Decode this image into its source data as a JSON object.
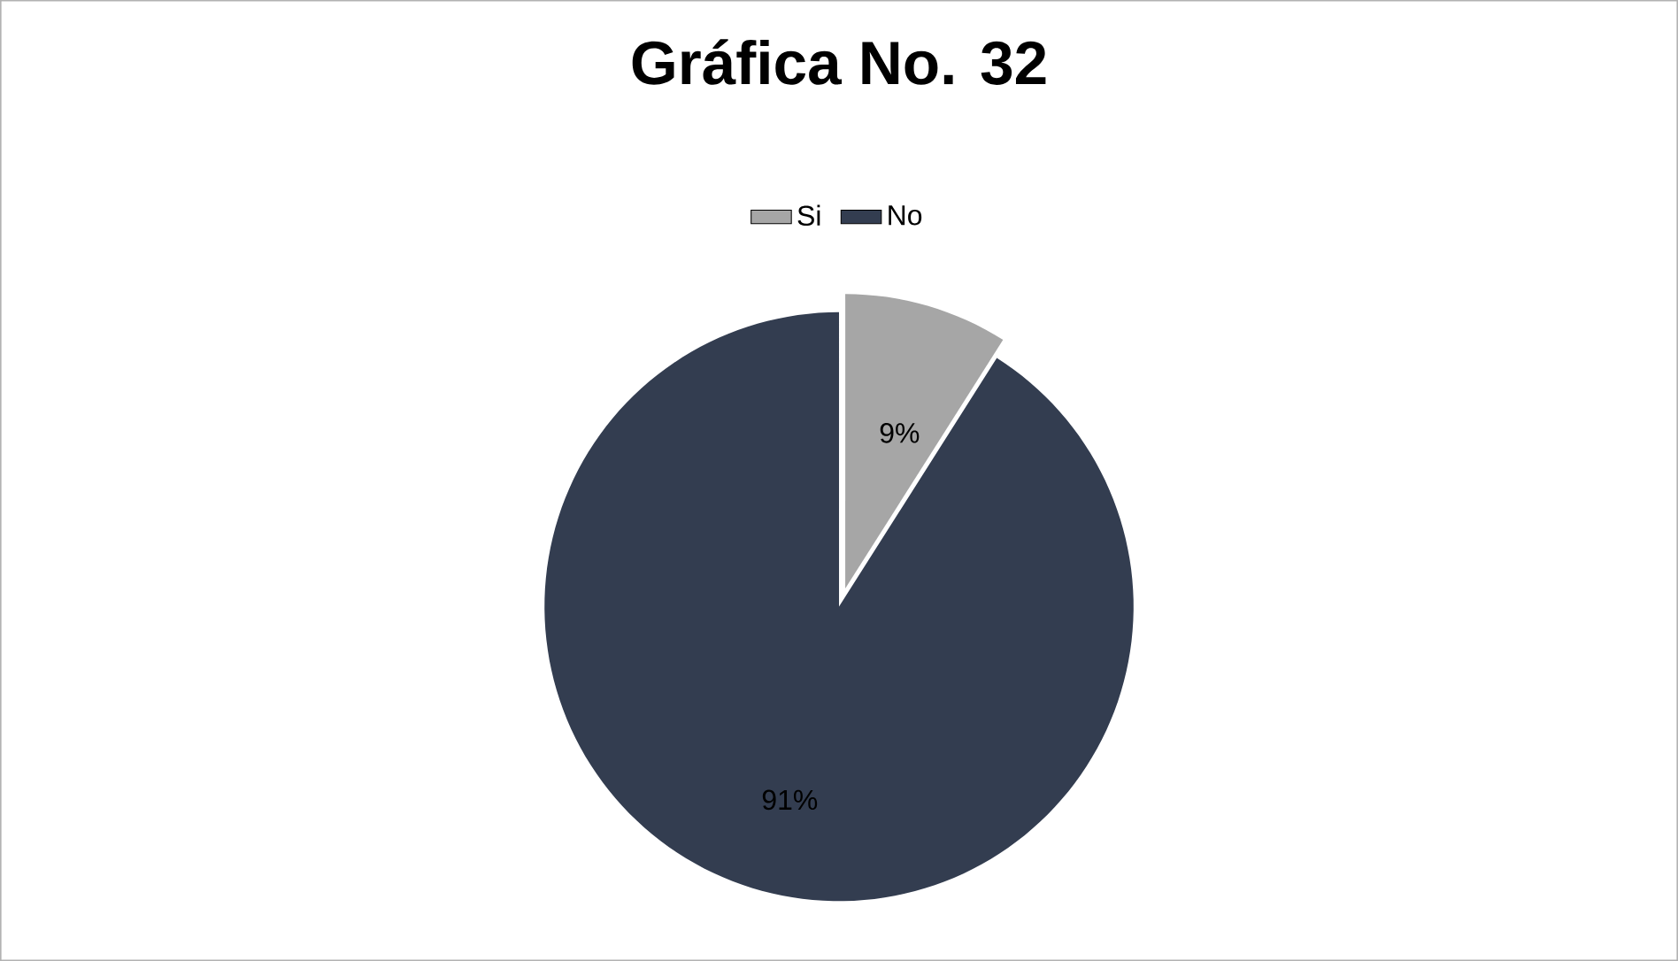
{
  "chart_data": {
    "type": "pie",
    "title": "Gráfica No. 32",
    "categories": [
      "Si",
      "No"
    ],
    "values": [
      9,
      91
    ],
    "colors": [
      "#a6a6a6",
      "#333d50"
    ],
    "value_labels": [
      "9%",
      "91%"
    ],
    "legend": "top"
  }
}
